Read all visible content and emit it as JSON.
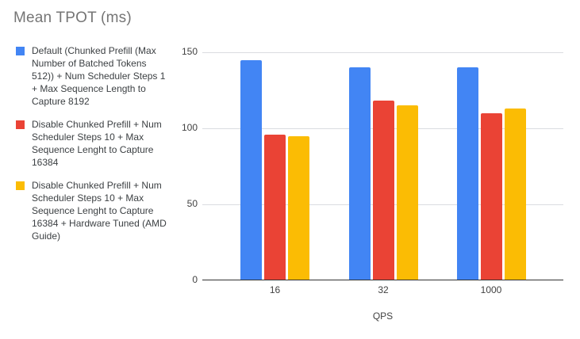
{
  "title": "Mean TPOT (ms)",
  "colors": {
    "series_blue": "#4285F4",
    "series_red": "#EA4335",
    "series_yellow": "#FBBC04",
    "title_text": "#757575",
    "legend_text": "#3C4043",
    "axis_text": "#424242",
    "gridline": "#DADCE0",
    "baseline": "#333333",
    "background": "#FFFFFF"
  },
  "legend": {
    "position": "left",
    "items": [
      {
        "label": "Default (Chunked Prefill (Max Number of Batched Tokens 512)) + Num Scheduler Steps 1 + Max Sequence Length to Capture 8192",
        "color": "#4285F4"
      },
      {
        "label": "Disable Chunked Prefill + Num Scheduler Steps 10 + Max Sequence Lenght to Capture 16384",
        "color": "#EA4335"
      },
      {
        "label": "Disable Chunked Prefill + Num Scheduler Steps 10 + Max Sequence Lenght to Capture 16384 + Hardware Tuned (AMD Guide)",
        "color": "#FBBC04"
      }
    ]
  },
  "chart_data": {
    "type": "bar",
    "title": "Mean TPOT (ms)",
    "categories": [
      "16",
      "32",
      "1000"
    ],
    "series": [
      {
        "name": "Default (Chunked Prefill (Max Number of Batched Tokens 512)) + Num Scheduler Steps 1 + Max Sequence Length to Capture 8192",
        "color": "#4285F4",
        "values": [
          145,
          140,
          140
        ]
      },
      {
        "name": "Disable Chunked Prefill + Num Scheduler Steps 10 + Max Sequence Lenght to Capture 16384",
        "color": "#EA4335",
        "values": [
          96,
          118,
          110
        ]
      },
      {
        "name": "Disable Chunked Prefill + Num Scheduler Steps 10 + Max Sequence Lenght to Capture 16384 + Hardware Tuned (AMD Guide)",
        "color": "#FBBC04",
        "values": [
          95,
          115,
          113
        ]
      }
    ],
    "xlabel": "QPS",
    "ylabel": "",
    "ylim": [
      0,
      150
    ],
    "yticks": [
      0,
      50,
      100,
      150
    ],
    "grid": true,
    "legend_position": "left"
  }
}
